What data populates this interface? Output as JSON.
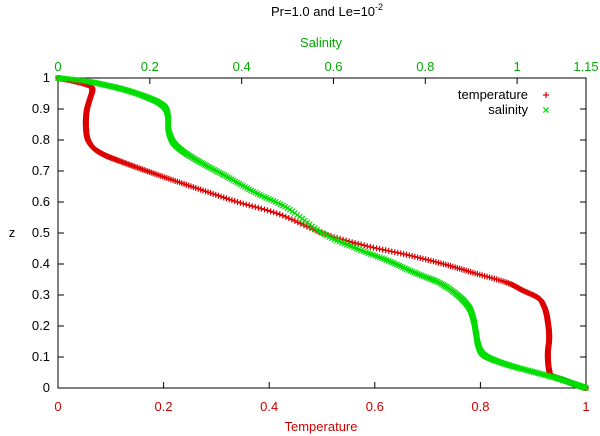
{
  "chart_data": {
    "type": "scatter",
    "title": "Pr=1.0 and Le=10",
    "title_exponent": "-2",
    "xlabel": "Temperature",
    "x2label": "Salinity",
    "ylabel": "z",
    "xlim": [
      0,
      1
    ],
    "x2lim": [
      0,
      1.15
    ],
    "ylim": [
      0,
      1
    ],
    "xticks": [
      "0",
      "0.2",
      "0.4",
      "0.6",
      "0.8",
      "1"
    ],
    "x2ticks": [
      "0",
      "0.2",
      "0.4",
      "0.6",
      "0.8",
      "1",
      "1.15"
    ],
    "yticks": [
      "0",
      "0.1",
      "0.2",
      "0.3",
      "0.4",
      "0.5",
      "0.6",
      "0.7",
      "0.8",
      "0.9",
      "1"
    ],
    "legend_position": "top-right",
    "series": [
      {
        "name": "temperature",
        "marker": "+",
        "color": "#dd0000",
        "axis": "bottom",
        "points": [
          [
            0.0,
            1.0
          ],
          [
            0.03,
            0.99
          ],
          [
            0.06,
            0.975
          ],
          [
            0.065,
            0.96
          ],
          [
            0.06,
            0.93
          ],
          [
            0.055,
            0.9
          ],
          [
            0.053,
            0.87
          ],
          [
            0.053,
            0.84
          ],
          [
            0.055,
            0.81
          ],
          [
            0.06,
            0.79
          ],
          [
            0.07,
            0.77
          ],
          [
            0.09,
            0.75
          ],
          [
            0.12,
            0.73
          ],
          [
            0.16,
            0.705
          ],
          [
            0.21,
            0.675
          ],
          [
            0.27,
            0.64
          ],
          [
            0.34,
            0.6
          ],
          [
            0.42,
            0.56
          ],
          [
            0.5,
            0.5
          ],
          [
            0.58,
            0.46
          ],
          [
            0.66,
            0.43
          ],
          [
            0.73,
            0.4
          ],
          [
            0.79,
            0.37
          ],
          [
            0.85,
            0.34
          ],
          [
            0.88,
            0.315
          ],
          [
            0.91,
            0.29
          ],
          [
            0.92,
            0.265
          ],
          [
            0.925,
            0.24
          ],
          [
            0.928,
            0.21
          ],
          [
            0.93,
            0.18
          ],
          [
            0.93,
            0.15
          ],
          [
            0.928,
            0.12
          ],
          [
            0.928,
            0.09
          ],
          [
            0.93,
            0.06
          ],
          [
            0.935,
            0.04
          ],
          [
            0.96,
            0.025
          ],
          [
            0.98,
            0.01
          ],
          [
            1.0,
            0.0
          ]
        ]
      },
      {
        "name": "salinity",
        "marker": "x",
        "color": "#00dd00",
        "axis": "top",
        "points": [
          [
            0.0,
            1.0
          ],
          [
            0.06,
            0.99
          ],
          [
            0.11,
            0.975
          ],
          [
            0.15,
            0.96
          ],
          [
            0.19,
            0.94
          ],
          [
            0.22,
            0.92
          ],
          [
            0.235,
            0.9
          ],
          [
            0.24,
            0.87
          ],
          [
            0.24,
            0.84
          ],
          [
            0.245,
            0.81
          ],
          [
            0.255,
            0.785
          ],
          [
            0.28,
            0.755
          ],
          [
            0.32,
            0.72
          ],
          [
            0.37,
            0.68
          ],
          [
            0.43,
            0.63
          ],
          [
            0.5,
            0.58
          ],
          [
            0.575,
            0.5
          ],
          [
            0.65,
            0.45
          ],
          [
            0.72,
            0.41
          ],
          [
            0.78,
            0.37
          ],
          [
            0.83,
            0.34
          ],
          [
            0.87,
            0.3
          ],
          [
            0.895,
            0.26
          ],
          [
            0.905,
            0.22
          ],
          [
            0.91,
            0.18
          ],
          [
            0.915,
            0.14
          ],
          [
            0.925,
            0.11
          ],
          [
            0.95,
            0.09
          ],
          [
            0.99,
            0.07
          ],
          [
            1.04,
            0.05
          ],
          [
            1.09,
            0.03
          ],
          [
            1.13,
            0.01
          ],
          [
            1.15,
            0.0
          ]
        ]
      }
    ]
  }
}
